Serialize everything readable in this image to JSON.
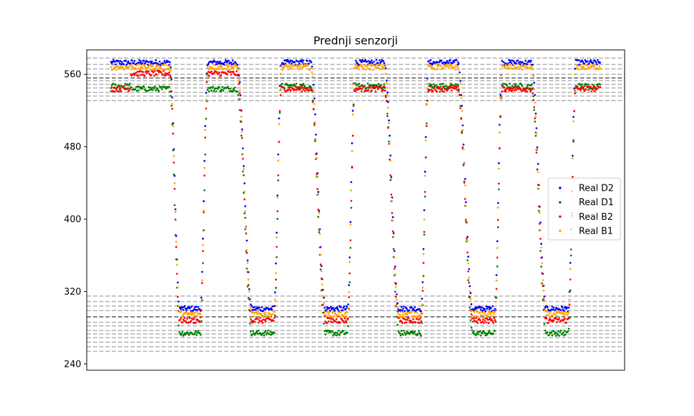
{
  "chart_data": {
    "type": "scatter",
    "title": "Prednji senzorji",
    "xlabel": "",
    "ylabel": "",
    "ylim": [
      233,
      587
    ],
    "xlim": [
      0,
      1000
    ],
    "y_ticks": [
      240,
      320,
      400,
      480,
      560
    ],
    "show_x_ticks": false,
    "grid": false,
    "legend_position": "center-right",
    "cycle": {
      "high_segments": [
        [
          40,
          120
        ],
        [
          197,
          257
        ],
        [
          347,
          407
        ],
        [
          497,
          557
        ],
        [
          647,
          707
        ],
        [
          797,
          857
        ],
        [
          947,
          997
        ]
      ],
      "low_segments": [
        [
          140,
          182
        ],
        [
          287,
          332
        ],
        [
          437,
          482
        ],
        [
          587,
          632
        ],
        [
          737,
          782
        ],
        [
          887,
          932
        ]
      ]
    },
    "series": [
      {
        "name": "Real D2",
        "color": "#0000ff",
        "high_level": 573,
        "low_level": 301
      },
      {
        "name": "Real D1",
        "color": "#008000",
        "high_level": 544,
        "high_level_late": 547,
        "low_level": 274
      },
      {
        "name": "Real B2",
        "color": "#ff0000",
        "high_level": 561,
        "high_level_late": 544,
        "low_level": 288
      },
      {
        "name": "Real B1",
        "color": "#ffa500",
        "high_level": 568,
        "low_level": 295
      }
    ],
    "reference_lines": {
      "dark": [
        556,
        292
      ],
      "light": [
        578,
        571,
        566,
        560,
        553,
        549,
        545,
        540,
        536,
        531,
        315,
        309,
        304,
        299,
        286,
        282,
        277,
        273,
        269,
        264,
        259,
        254
      ]
    }
  }
}
